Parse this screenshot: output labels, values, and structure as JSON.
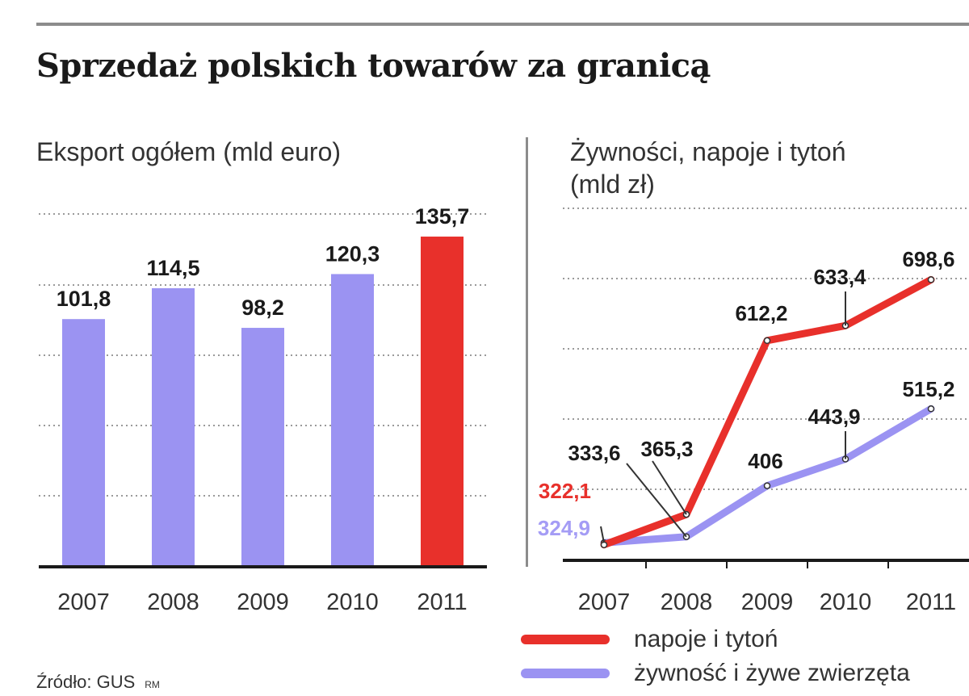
{
  "title": "Sprzedaż polskich towarów za granicą",
  "source": "Źródło: GUS",
  "source_mark": "RM",
  "colors": {
    "bar_default": "#9b93f2",
    "bar_highlight": "#e8302b",
    "series_red": "#e8302b",
    "series_blue": "#9b93f2",
    "label_blue": "#a49cf5"
  },
  "chart_data": [
    {
      "type": "bar",
      "title": "Eksport ogółem (mld euro)",
      "categories": [
        "2007",
        "2008",
        "2009",
        "2010",
        "2011"
      ],
      "values": [
        101.8,
        114.5,
        98.2,
        120.3,
        135.7
      ],
      "value_labels": [
        "101,8",
        "114,5",
        "98,2",
        "120,3",
        "135,7"
      ],
      "highlight_index": 4,
      "ylim": [
        0,
        145
      ],
      "grid": true
    },
    {
      "type": "line",
      "title_line1": "Żywności, napoje i tytoń",
      "title_line2": "(mld zł)",
      "categories": [
        "2007",
        "2008",
        "2009",
        "2010",
        "2011"
      ],
      "ylim": [
        300,
        800
      ],
      "grid": true,
      "legend_position": "bottom",
      "series": [
        {
          "name": "napoje i tytoń",
          "values": [
            322.1,
            365.3,
            612.2,
            633.4,
            698.6
          ],
          "labels": [
            "322,1",
            "365,3",
            "612,2",
            "633,4",
            "698,6"
          ]
        },
        {
          "name": "żywność i żywe zwierzęta",
          "values": [
            324.9,
            333.6,
            406,
            443.9,
            515.2
          ],
          "labels": [
            "324,9",
            "333,6",
            "406",
            "443,9",
            "515,2"
          ]
        }
      ]
    }
  ]
}
